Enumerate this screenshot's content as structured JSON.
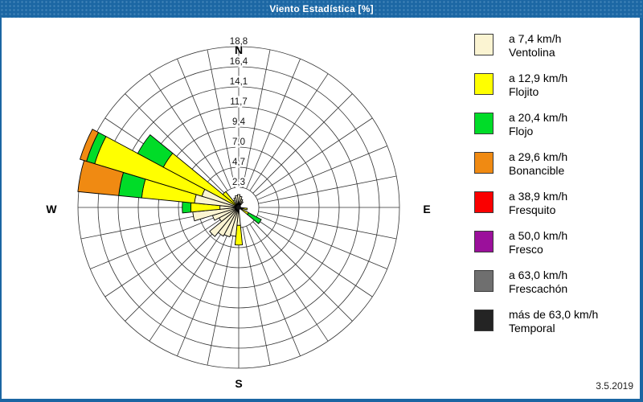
{
  "window": {
    "title": "Viento Estadística [%]",
    "date": "3.5.2019",
    "frame_color": "#1B66A3"
  },
  "compass": {
    "north": "N",
    "east": "E",
    "south": "S",
    "west": "W"
  },
  "legend": {
    "items": [
      {
        "key": "ventolina",
        "speed": "a 7,4 km/h",
        "name": "Ventolina",
        "color": "#FBF4D2"
      },
      {
        "key": "flojito",
        "speed": "a 12,9 km/h",
        "name": "Flojito",
        "color": "#FFFF00"
      },
      {
        "key": "flojo",
        "speed": "a 20,4 km/h",
        "name": "Flojo",
        "color": "#00DC28"
      },
      {
        "key": "bonancible",
        "speed": "a 29,6 km/h",
        "name": "Bonancible",
        "color": "#F08A12"
      },
      {
        "key": "fresquito",
        "speed": "a 38,9 km/h",
        "name": "Fresquito",
        "color": "#FA0000"
      },
      {
        "key": "fresco",
        "speed": "a 50,0 km/h",
        "name": "Fresco",
        "color": "#9B109B"
      },
      {
        "key": "frescachon",
        "speed": "a 63,0 km/h",
        "name": "Frescachón",
        "color": "#6F6F6F"
      },
      {
        "key": "temporal",
        "speed": "más de 63,0 km/h",
        "name": "Temporal",
        "color": "#242424"
      }
    ]
  },
  "chart_data": {
    "type": "bar",
    "variant": "wind-rose: polar stacked bars, 32 sectors of 11.25°",
    "title": "Viento Estadística [%]",
    "units": "%",
    "grid": true,
    "legend_position": "right",
    "radial_axis": {
      "max": 18.8,
      "rings": 8,
      "ring_labels": [
        "2,3",
        "4,7",
        "7,0",
        "9,4",
        "11,7",
        "14,1",
        "16,4",
        "18,8"
      ]
    },
    "categories": {
      "ventolina": {
        "label": "a 7,4 km/h Ventolina",
        "color": "#FBF4D2"
      },
      "flojito": {
        "label": "a 12,9 km/h Flojito",
        "color": "#FFFF00"
      },
      "flojo": {
        "label": "a 20,4 km/h Flojo",
        "color": "#00DC28"
      },
      "bonancible": {
        "label": "a 29,6 km/h Bonancible",
        "color": "#F08A12"
      },
      "fresquito": {
        "label": "a 38,9 km/h Fresquito",
        "color": "#FA0000"
      },
      "fresco": {
        "label": "a 50,0 km/h Fresco",
        "color": "#9B109B"
      },
      "frescachon": {
        "label": "a 63,0 km/h Frescachón",
        "color": "#6F6F6F"
      },
      "temporal": {
        "label": "más de 63,0 km/h Temporal",
        "color": "#242424"
      }
    },
    "bars": [
      {
        "bearing": 0,
        "segments": [
          [
            "ventolina",
            0,
            1.5
          ]
        ]
      },
      {
        "bearing": 11.25,
        "segments": [
          [
            "ventolina",
            0,
            1.3
          ]
        ]
      },
      {
        "bearing": 22.5,
        "segments": [
          [
            "ventolina",
            0,
            1.0
          ]
        ]
      },
      {
        "bearing": 33.75,
        "segments": [
          [
            "ventolina",
            0,
            0.8
          ]
        ]
      },
      {
        "bearing": 101.25,
        "segments": [
          [
            "flojito",
            0,
            1.0
          ]
        ]
      },
      {
        "bearing": 123.75,
        "segments": [
          [
            "flojito",
            0,
            1.3
          ],
          [
            "flojo",
            1.3,
            3.0
          ]
        ]
      },
      {
        "bearing": 180,
        "segments": [
          [
            "ventolina",
            0,
            2.1
          ],
          [
            "flojito",
            2.1,
            4.4
          ]
        ]
      },
      {
        "bearing": 191.25,
        "segments": [
          [
            "ventolina",
            0,
            3.4
          ]
        ]
      },
      {
        "bearing": 202.5,
        "segments": [
          [
            "ventolina",
            0,
            3.6
          ]
        ]
      },
      {
        "bearing": 213.75,
        "segments": [
          [
            "ventolina",
            0,
            3.8
          ]
        ]
      },
      {
        "bearing": 225,
        "segments": [
          [
            "ventolina",
            0,
            4.4
          ]
        ]
      },
      {
        "bearing": 236.25,
        "segments": [
          [
            "ventolina",
            0,
            2.6
          ]
        ]
      },
      {
        "bearing": 247.5,
        "segments": [
          [
            "ventolina",
            0,
            3.2
          ]
        ]
      },
      {
        "bearing": 258.75,
        "segments": [
          [
            "ventolina",
            0,
            5.4
          ]
        ]
      },
      {
        "bearing": 270,
        "segments": [
          [
            "ventolina",
            0,
            2.2
          ],
          [
            "flojito",
            2.2,
            5.6
          ],
          [
            "flojo",
            5.6,
            6.6
          ]
        ]
      },
      {
        "bearing": 281.25,
        "segments": [
          [
            "ventolina",
            0,
            5.2
          ],
          [
            "flojito",
            5.2,
            11.4
          ],
          [
            "flojo",
            11.4,
            14.1
          ],
          [
            "bonancible",
            14.1,
            18.9
          ]
        ]
      },
      {
        "bearing": 292.5,
        "segments": [
          [
            "ventolina",
            0,
            4.5
          ],
          [
            "flojito",
            4.5,
            17.6
          ],
          [
            "flojo",
            17.6,
            18.6
          ],
          [
            "bonancible",
            18.6,
            19.4
          ]
        ]
      },
      {
        "bearing": 303.75,
        "segments": [
          [
            "flojito",
            0,
            10.0
          ],
          [
            "flojo",
            10.0,
            13.4
          ]
        ]
      },
      {
        "bearing": 315,
        "segments": [
          [
            "flojito",
            0,
            2.4
          ]
        ]
      },
      {
        "bearing": 326.25,
        "segments": [
          [
            "ventolina",
            0,
            1.0
          ]
        ]
      },
      {
        "bearing": 337.5,
        "segments": [
          [
            "ventolina",
            0,
            1.2
          ]
        ]
      },
      {
        "bearing": 348.75,
        "segments": [
          [
            "ventolina",
            0,
            1.4
          ]
        ]
      }
    ]
  }
}
